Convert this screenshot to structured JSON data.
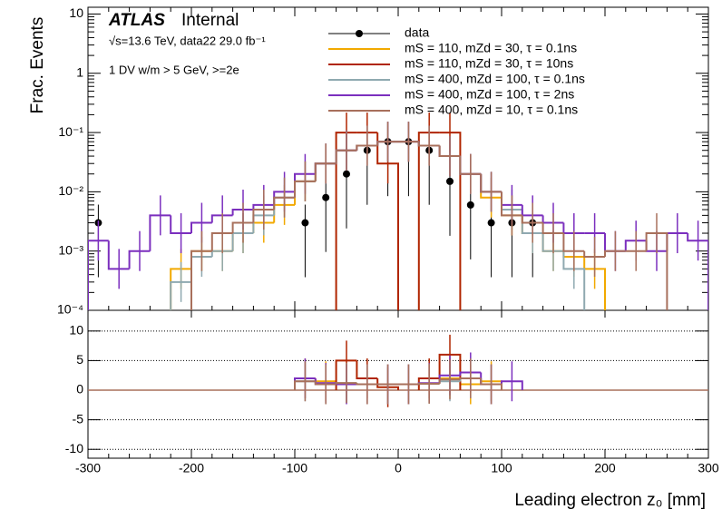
{
  "chart_data": {
    "type": "histogram",
    "title": "ATLAS",
    "title_suffix": "Internal",
    "subtitle": "√s=13.6 TeV, data22 29.0 fb⁻¹",
    "annotation": "1 DV w/m > 5 GeV, >=2e",
    "ylabel": "Frac. Events",
    "xlabel": "Leading electron z₀ [mm]",
    "log_y": true,
    "bins": [
      -300,
      -280,
      -260,
      -240,
      -220,
      -200,
      -180,
      -160,
      -140,
      -120,
      -100,
      -80,
      -60,
      -40,
      -20,
      0,
      20,
      40,
      60,
      80,
      100,
      120,
      140,
      160,
      180,
      200,
      220,
      240,
      260,
      280,
      300
    ],
    "xlim": [
      -300,
      300
    ],
    "xticks": [
      -300,
      -200,
      -100,
      0,
      100,
      200,
      300
    ],
    "ylim": [
      0.0001,
      13
    ],
    "yticks": [
      {
        "value": 0.0001,
        "label": "10⁻⁴"
      },
      {
        "value": 0.001,
        "label": "10⁻³"
      },
      {
        "value": 0.01,
        "label": "10⁻²"
      },
      {
        "value": 0.1,
        "label": "10⁻¹"
      },
      1,
      10
    ],
    "series": [
      {
        "name": "data",
        "color": "#000000",
        "style": "points",
        "values": [
          0.003,
          null,
          null,
          null,
          null,
          null,
          null,
          null,
          null,
          null,
          0.003,
          0.008,
          0.02,
          0.05,
          0.07,
          0.07,
          0.05,
          0.015,
          0.006,
          0.003,
          0.003,
          0.003,
          null,
          null,
          null,
          null,
          null,
          null,
          null,
          null
        ]
      },
      {
        "name": "mS = 110, mZd = 30, τ = 0.1ns",
        "color": "#f2a900",
        "style": "step",
        "values": [
          null,
          null,
          null,
          null,
          0.0005,
          0.001,
          0.001,
          0.002,
          0.003,
          0.006,
          0.015,
          0.03,
          0.05,
          0.06,
          0.07,
          0.07,
          0.06,
          0.04,
          0.02,
          0.008,
          0.004,
          0.002,
          0.001,
          0.0008,
          0.0005,
          null,
          null,
          null,
          null,
          null
        ]
      },
      {
        "name": "mS = 110, mZd = 30, τ = 10ns",
        "color": "#b02500",
        "style": "step",
        "values": [
          null,
          null,
          null,
          null,
          null,
          null,
          null,
          null,
          null,
          null,
          null,
          null,
          0.1,
          0.1,
          0.03,
          null,
          0.1,
          0.1,
          null,
          null,
          null,
          null,
          null,
          null,
          null,
          null,
          null,
          null,
          null,
          null
        ]
      },
      {
        "name": "mS = 400, mZd = 100, τ = 0.1ns",
        "color": "#8fa9b0",
        "style": "step",
        "values": [
          null,
          null,
          null,
          null,
          0.0003,
          0.0008,
          0.001,
          0.002,
          0.004,
          0.008,
          0.015,
          0.03,
          0.05,
          0.06,
          0.07,
          0.07,
          0.06,
          0.04,
          0.02,
          0.01,
          0.005,
          0.002,
          0.001,
          0.0005,
          null,
          null,
          null,
          null,
          null,
          null
        ]
      },
      {
        "name": "mS = 400, mZd = 100, τ = 2ns",
        "color": "#7b2fbe",
        "style": "step",
        "values": [
          0.0015,
          0.0005,
          0.001,
          0.004,
          0.002,
          0.003,
          0.004,
          0.005,
          0.006,
          0.01,
          0.02,
          0.03,
          0.05,
          0.06,
          0.07,
          0.07,
          0.06,
          0.04,
          0.02,
          0.01,
          0.006,
          0.004,
          0.003,
          0.002,
          0.002,
          0.001,
          0.0015,
          0.001,
          0.002,
          0.0015
        ]
      },
      {
        "name": "mS = 400, mZd = 10, τ = 0.1ns",
        "color": "#a8705c",
        "style": "step",
        "values": [
          null,
          null,
          null,
          null,
          null,
          0.001,
          0.002,
          0.003,
          0.005,
          0.008,
          0.015,
          0.03,
          0.05,
          0.06,
          0.07,
          0.07,
          0.06,
          0.04,
          0.02,
          0.01,
          0.004,
          0.003,
          0.002,
          0.001,
          0.0008,
          0.001,
          0.001,
          0.002,
          null,
          null
        ]
      }
    ],
    "ratio": {
      "ylim": [
        -11.5,
        13.5
      ],
      "yticks": [
        -10,
        -5,
        0,
        5,
        10
      ],
      "grid": true,
      "series": [
        {
          "color": "#f2a900",
          "values": [
            null,
            null,
            null,
            null,
            null,
            null,
            null,
            null,
            null,
            null,
            2,
            1.5,
            1.2,
            1,
            1,
            1,
            1.1,
            2,
            1,
            1.5,
            null,
            null,
            null,
            null,
            null,
            null,
            null,
            null,
            null,
            null
          ]
        },
        {
          "color": "#b02500",
          "values": [
            null,
            null,
            null,
            null,
            null,
            null,
            null,
            null,
            null,
            null,
            null,
            null,
            5,
            2,
            0.5,
            null,
            2,
            6,
            null,
            null,
            null,
            null,
            null,
            null,
            null,
            null,
            null,
            null,
            null,
            null
          ]
        },
        {
          "color": "#8fa9b0",
          "values": [
            null,
            null,
            null,
            null,
            null,
            null,
            null,
            null,
            null,
            null,
            1.5,
            1,
            1.2,
            1,
            1,
            1,
            1.1,
            1.5,
            2,
            1,
            null,
            null,
            null,
            null,
            null,
            null,
            null,
            null,
            null,
            null
          ]
        },
        {
          "color": "#7b2fbe",
          "values": [
            null,
            null,
            null,
            null,
            null,
            null,
            null,
            null,
            null,
            null,
            2,
            1.2,
            1,
            1,
            1,
            1,
            1.2,
            2.5,
            3,
            1,
            1.5,
            null,
            null,
            null,
            null,
            null,
            null,
            null,
            null,
            null
          ]
        },
        {
          "color": "#a8705c",
          "values": [
            null,
            null,
            null,
            null,
            null,
            null,
            null,
            null,
            null,
            null,
            1.5,
            1,
            1.2,
            1,
            1,
            1,
            1.1,
            1.8,
            2,
            1,
            null,
            null,
            null,
            null,
            null,
            null,
            null,
            null,
            null,
            null
          ]
        }
      ]
    }
  }
}
